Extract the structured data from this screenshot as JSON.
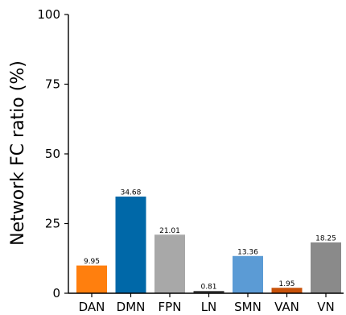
{
  "chart_data": {
    "type": "bar",
    "title": "",
    "xlabel": "",
    "ylabel": "Network FC ratio (%)",
    "ylim": [
      0,
      100
    ],
    "yticks": [
      "0",
      "25",
      "50",
      "75",
      "100"
    ],
    "categories": [
      "DAN",
      "DMN",
      "FPN",
      "LN",
      "SMN",
      "VAN",
      "VN"
    ],
    "values": [
      9.95,
      34.68,
      21.01,
      0.81,
      13.36,
      1.95,
      18.25
    ],
    "value_labels": [
      "9.95",
      "34.68",
      "21.01",
      "0.81",
      "13.36",
      "1.95",
      "18.25"
    ],
    "colors": [
      "#ff7f0e",
      "#0068a8",
      "#a8a8a8",
      "#3a3a3a",
      "#5b9bd5",
      "#c8520a",
      "#8a8a8a"
    ],
    "grid": false,
    "legend": "none"
  }
}
